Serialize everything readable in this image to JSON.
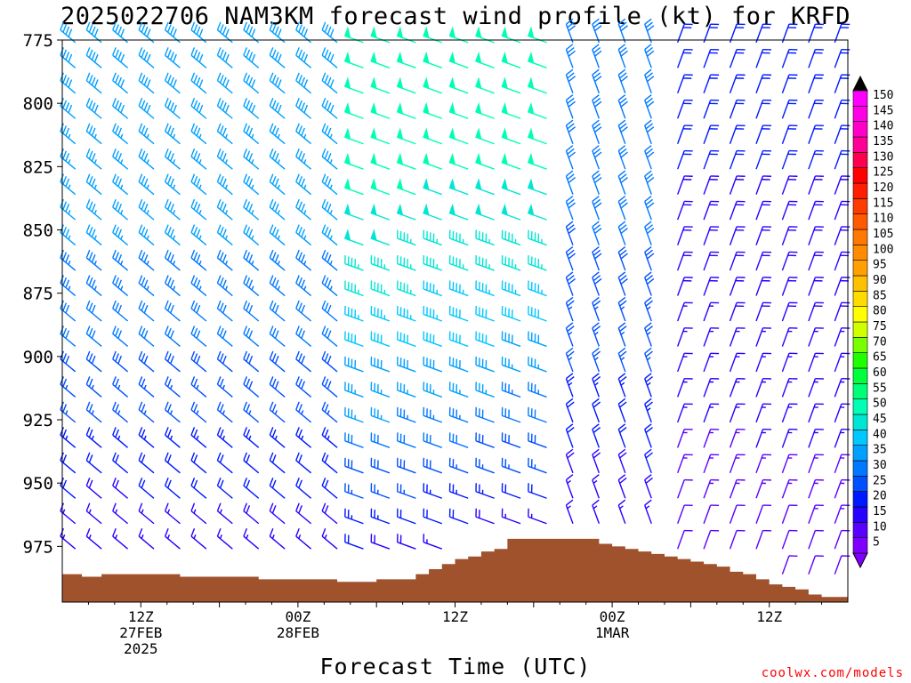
{
  "title": "2025022706 NAM3KM forecast wind profile (kt) for KRFD",
  "xlabel": "Forecast Time (UTC)",
  "credit": "coolwx.com/models",
  "chart_data": {
    "type": "wind-barb time-height",
    "y_axis": {
      "ticks": [
        775,
        800,
        825,
        850,
        875,
        900,
        925,
        950,
        975
      ],
      "ylim": [
        775,
        997
      ],
      "unit": "hPa"
    },
    "x_axis": {
      "ticks": [
        {
          "hour": 12,
          "lines": [
            "12Z",
            "27FEB",
            "2025"
          ]
        },
        {
          "hour": 24,
          "lines": [
            "00Z",
            "28FEB"
          ]
        },
        {
          "hour": 36,
          "lines": [
            "12Z"
          ]
        },
        {
          "hour": 48,
          "lines": [
            "00Z",
            "1MAR"
          ]
        },
        {
          "hour": 60,
          "lines": [
            "12Z"
          ]
        }
      ],
      "xlim": [
        6,
        66
      ]
    },
    "colorbar": {
      "unit": "kt",
      "levels": [
        5,
        10,
        15,
        20,
        25,
        30,
        35,
        40,
        45,
        50,
        55,
        60,
        65,
        70,
        75,
        80,
        85,
        90,
        95,
        100,
        105,
        110,
        115,
        120,
        125,
        130,
        135,
        140,
        145,
        150
      ],
      "colors": [
        "#8000ff",
        "#5a00ff",
        "#2800ff",
        "#0018ff",
        "#0050ff",
        "#0078ff",
        "#00a0ff",
        "#00c8ff",
        "#00e6d2",
        "#00ffb4",
        "#00ff78",
        "#00ff3c",
        "#1eff00",
        "#78ff00",
        "#d2ff00",
        "#ffff00",
        "#ffdc00",
        "#ffc000",
        "#ffa000",
        "#ff8c00",
        "#ff7800",
        "#ff5a00",
        "#ff3c00",
        "#ff1e00",
        "#ff0000",
        "#ff0050",
        "#ff0096",
        "#ff00c8",
        "#ff00e6",
        "#ff00ff"
      ]
    },
    "surface_pressure": {
      "hours": [
        6,
        7.5,
        9,
        12,
        15,
        18,
        21,
        24,
        27,
        30,
        33,
        34,
        35,
        36,
        37,
        38,
        39,
        40,
        42,
        44,
        46,
        47,
        48,
        49,
        50,
        51,
        52,
        53,
        54,
        55,
        56,
        57,
        58,
        59,
        60,
        61,
        62,
        63,
        64,
        66
      ],
      "pressure": [
        986,
        987,
        986,
        986,
        987,
        987,
        988,
        988,
        989,
        988,
        986,
        984,
        982,
        980,
        979,
        977,
        976,
        972,
        972,
        972,
        972,
        974,
        975,
        976,
        977,
        978,
        979,
        980,
        981,
        982,
        983,
        985,
        986,
        988,
        990,
        991,
        992,
        994,
        995,
        995
      ]
    },
    "barbs": {
      "hour_step": 2,
      "hours": [
        7,
        9,
        11,
        13,
        15,
        17,
        19,
        21,
        23,
        25,
        27,
        29,
        31,
        33,
        35,
        37,
        39,
        41,
        43,
        45,
        47,
        49,
        51,
        53,
        55,
        57,
        59,
        61,
        63,
        65
      ],
      "pressure_step": 10,
      "regimes": [
        {
          "hours": [
            7,
            27
          ],
          "direction_deg": 310,
          "speed_kt_aloft": 38,
          "speed_kt_surface": 12
        },
        {
          "hours": [
            29,
            43
          ],
          "direction_deg": 290,
          "speed_kt_aloft": 52,
          "speed_kt_surface": 15
        },
        {
          "hours": [
            45,
            51
          ],
          "direction_deg": 340,
          "speed_kt_aloft": 32,
          "speed_kt_surface": 14
        },
        {
          "hours": [
            53,
            65
          ],
          "direction_deg": 20,
          "speed_kt_aloft": 20,
          "speed_kt_surface": 10
        }
      ]
    }
  }
}
